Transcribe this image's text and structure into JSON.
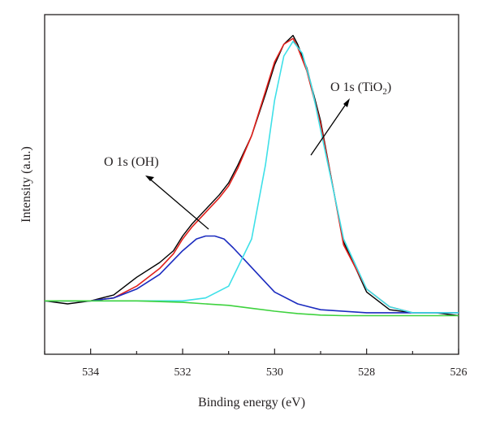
{
  "chart_data": {
    "type": "line",
    "title": "",
    "xlabel": "Binding energy (eV)",
    "ylabel": "Intensity (a.u.)",
    "x_reversed": true,
    "xlim": [
      535,
      526
    ],
    "ylim": [
      0,
      1
    ],
    "y_tick_labels": false,
    "x_ticks": [
      534,
      532,
      530,
      528,
      526
    ],
    "grid": false,
    "legend": "none",
    "annotations": [
      {
        "text_parts": [
          "O 1s (OH)"
        ],
        "points_to": "OH component"
      },
      {
        "text_parts": [
          "O 1s (TiO",
          "2",
          ")"
        ],
        "points_to": "TiO2 component"
      }
    ],
    "series": [
      {
        "color": "#000000",
        "role": "raw data",
        "x": [
          535,
          534.5,
          534,
          533.5,
          533,
          532.5,
          532.2,
          532.0,
          531.8,
          531.5,
          531.2,
          531.0,
          530.8,
          530.5,
          530.2,
          530.0,
          529.8,
          529.6,
          529.5,
          529.3,
          529.0,
          528.7,
          528.5,
          528.0,
          527.5,
          527.0,
          526.5,
          526
        ],
        "y": [
          0.09,
          0.08,
          0.09,
          0.11,
          0.17,
          0.22,
          0.26,
          0.31,
          0.35,
          0.4,
          0.45,
          0.49,
          0.55,
          0.65,
          0.79,
          0.89,
          0.96,
          0.99,
          0.96,
          0.88,
          0.7,
          0.45,
          0.29,
          0.12,
          0.06,
          0.05,
          0.05,
          0.04
        ]
      },
      {
        "color": "#e0201b",
        "role": "fitted envelope",
        "x": [
          535,
          534.5,
          534,
          533.5,
          533,
          532.5,
          532.2,
          532.0,
          531.8,
          531.5,
          531.2,
          531.0,
          530.8,
          530.5,
          530.2,
          530.0,
          529.8,
          529.6,
          529.5,
          529.3,
          529.0,
          528.7,
          528.5,
          528.0,
          527.5,
          527.0,
          526.5,
          526
        ],
        "y": [
          0.09,
          0.09,
          0.09,
          0.1,
          0.14,
          0.2,
          0.25,
          0.3,
          0.34,
          0.39,
          0.44,
          0.48,
          0.54,
          0.65,
          0.8,
          0.9,
          0.96,
          0.98,
          0.95,
          0.87,
          0.69,
          0.45,
          0.28,
          0.13,
          0.07,
          0.05,
          0.05,
          0.05
        ]
      },
      {
        "color": "#1b2bbf",
        "role": "O 1s (OH) component",
        "x": [
          535,
          534,
          533.5,
          533,
          532.5,
          532,
          531.7,
          531.5,
          531.3,
          531.1,
          530.9,
          530.6,
          530.3,
          530,
          529.5,
          529,
          528,
          527,
          526
        ],
        "y": [
          0.09,
          0.09,
          0.1,
          0.13,
          0.18,
          0.26,
          0.3,
          0.31,
          0.31,
          0.3,
          0.27,
          0.22,
          0.17,
          0.12,
          0.08,
          0.06,
          0.05,
          0.05,
          0.05
        ]
      },
      {
        "color": "#3ee0e8",
        "role": "O 1s (TiO2) component",
        "x": [
          535,
          533,
          532,
          531.5,
          531,
          530.5,
          530.2,
          530,
          529.8,
          529.6,
          529.4,
          529.2,
          529,
          528.7,
          528.5,
          528,
          527.5,
          527,
          526
        ],
        "y": [
          0.09,
          0.09,
          0.09,
          0.1,
          0.14,
          0.3,
          0.55,
          0.77,
          0.92,
          0.97,
          0.93,
          0.82,
          0.67,
          0.45,
          0.3,
          0.13,
          0.07,
          0.05,
          0.05
        ]
      },
      {
        "color": "#3ed23e",
        "role": "background",
        "x": [
          535,
          534,
          533,
          532,
          531.5,
          531,
          530.5,
          530,
          529.5,
          529,
          528.5,
          528,
          527,
          526
        ],
        "y": [
          0.09,
          0.09,
          0.09,
          0.085,
          0.08,
          0.075,
          0.065,
          0.055,
          0.047,
          0.042,
          0.04,
          0.04,
          0.04,
          0.04
        ]
      }
    ]
  }
}
